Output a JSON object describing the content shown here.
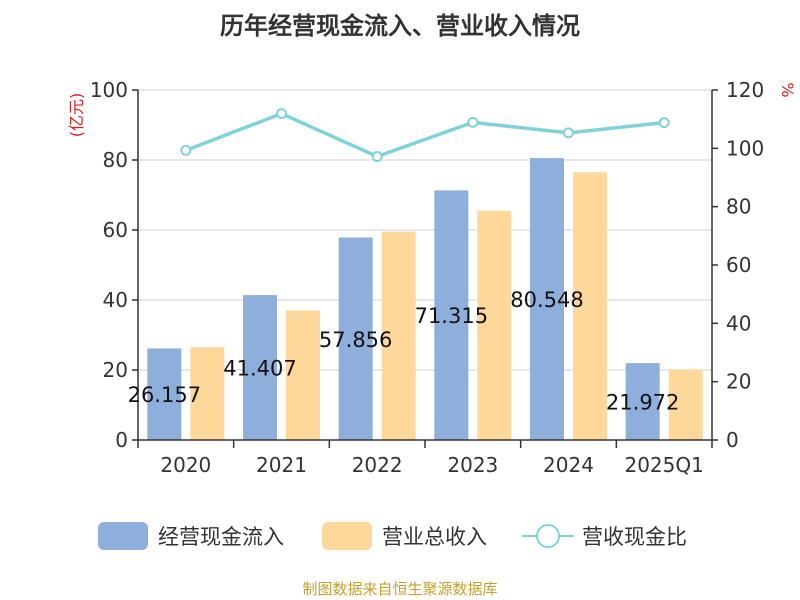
{
  "chart_data": {
    "type": "bar",
    "title": "历年经营现金流入、营业收入情况",
    "categories": [
      "2020",
      "2021",
      "2022",
      "2023",
      "2024",
      "2025Q1"
    ],
    "y_left_label": "(亿元)",
    "y_right_label": "%",
    "ylim_left": [
      0,
      100
    ],
    "ylim_right": [
      0,
      120
    ],
    "yticks_left": [
      "0",
      "20",
      "40",
      "60",
      "80",
      "100"
    ],
    "yticks_right": [
      "0",
      "20",
      "40",
      "60",
      "80",
      "100",
      "120"
    ],
    "grid": true,
    "legend_position": "bottom",
    "series": [
      {
        "name": "经营现金流入",
        "type": "bar",
        "axis": "left",
        "color": "#8eaedb",
        "values": [
          26.157,
          41.407,
          57.856,
          71.315,
          80.548,
          21.972
        ],
        "labels": [
          "26.157",
          "41.407",
          "57.856",
          "71.315",
          "80.548",
          "21.972"
        ]
      },
      {
        "name": "营业总收入",
        "type": "bar",
        "axis": "left",
        "color": "#fdd89a",
        "values": [
          26.5,
          37.0,
          59.5,
          65.5,
          76.5,
          20.2
        ]
      },
      {
        "name": "营收现金比",
        "type": "line",
        "axis": "right",
        "color": "#7fd3d8",
        "values": [
          99.3,
          111.9,
          97.2,
          108.9,
          105.3,
          108.8
        ]
      }
    ]
  },
  "source_note": "制图数据来自恒生聚源数据库"
}
